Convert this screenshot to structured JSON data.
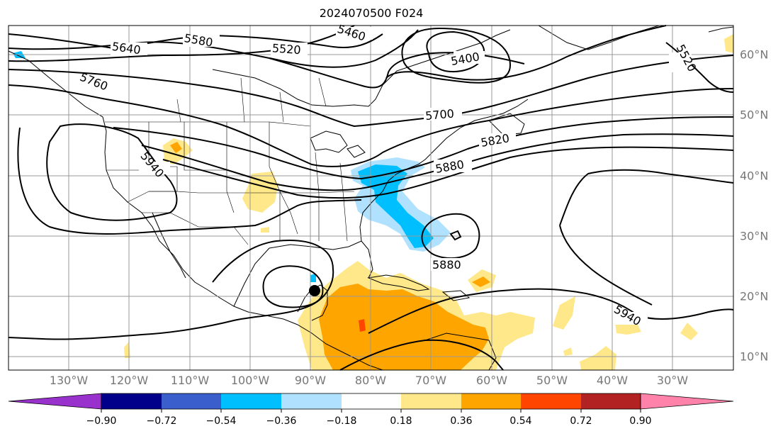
{
  "title": "2024070500 F024",
  "longitude_labels": [
    "130°W",
    "120°W",
    "110°W",
    "100°W",
    "90°W",
    "80°W",
    "70°W",
    "60°W",
    "50°W",
    "40°W",
    "30°W"
  ],
  "latitude_labels": [
    "60°N",
    "50°N",
    "40°N",
    "30°N",
    "20°N",
    "10°N"
  ],
  "contour_labels": [
    "5640",
    "5580",
    "5520",
    "5460",
    "5400",
    "5760",
    "5700",
    "5820",
    "5880",
    "5940",
    "5880",
    "5940",
    "5520"
  ],
  "colorbar": {
    "tick_labels": [
      "−0.90",
      "−0.72",
      "−0.54",
      "−0.36",
      "−0.18",
      "0.18",
      "0.36",
      "0.54",
      "0.72",
      "0.90"
    ],
    "colors": [
      "#9932cc",
      "#00008b",
      "#3a5fcd",
      "#00bfff",
      "#b0e2ff",
      "#ffffff",
      "#ffe88a",
      "#ffa500",
      "#ff4500",
      "#b22222",
      "#ff82ab"
    ]
  },
  "colors": {
    "positive_light": "#ffe88a",
    "positive_mid": "#ffa500",
    "positive_strong": "#ff4500",
    "negative_mid": "#00bfff",
    "negative_light": "#b0e2ff",
    "gridline": "#999999"
  }
}
